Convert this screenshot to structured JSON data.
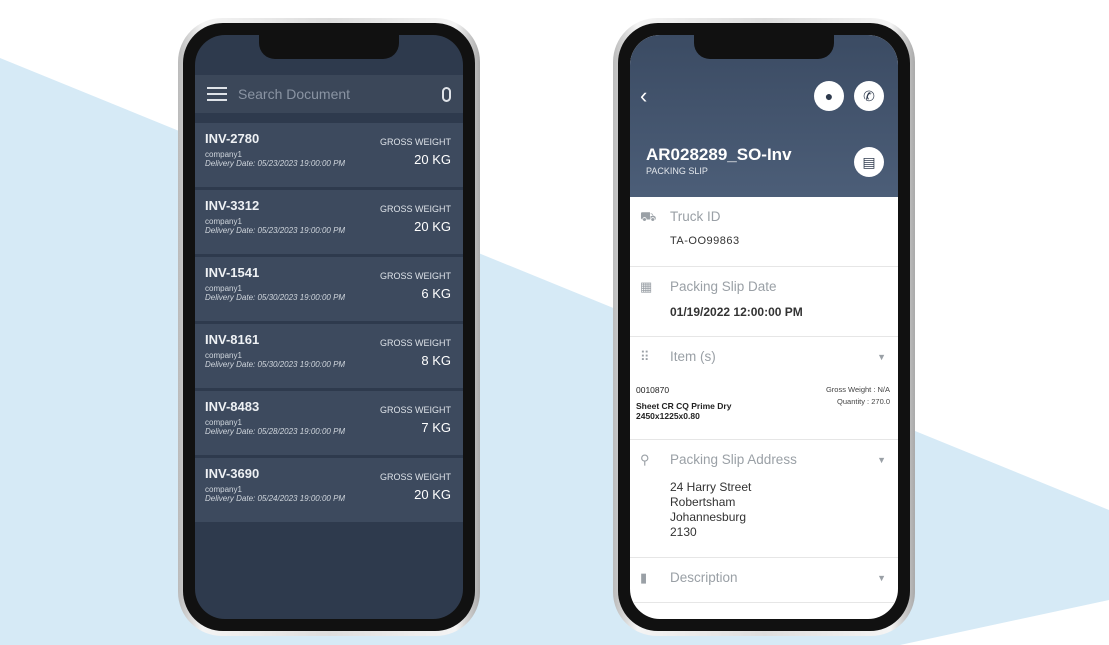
{
  "colors": {
    "background_band": "#d6eaf6",
    "list_bg": "#2e3a4d",
    "header_bg": "#3b4b63"
  },
  "list_screen": {
    "search": {
      "placeholder": "Search Document",
      "menu_icon": "hamburger-icon",
      "mic_icon": "microphone-icon"
    },
    "items": [
      {
        "id": "INV-2780",
        "company": "company1",
        "delivery": "Delivery Date:  05/23/2023 19:00:00 PM",
        "weight_label": "GROSS WEIGHT",
        "weight": "20 KG"
      },
      {
        "id": "INV-3312",
        "company": "company1",
        "delivery": "Delivery Date:  05/23/2023 19:00:00 PM",
        "weight_label": "GROSS WEIGHT",
        "weight": "20 KG"
      },
      {
        "id": "INV-1541",
        "company": "company1",
        "delivery": "Delivery Date:  05/30/2023 19:00:00 PM",
        "weight_label": "GROSS WEIGHT",
        "weight": "6 KG"
      },
      {
        "id": "INV-8161",
        "company": "company1",
        "delivery": "Delivery Date:  05/30/2023 19:00:00 PM",
        "weight_label": "GROSS WEIGHT",
        "weight": "8 KG"
      },
      {
        "id": "INV-8483",
        "company": "company1",
        "delivery": "Delivery Date:  05/28/2023 19:00:00 PM",
        "weight_label": "GROSS WEIGHT",
        "weight": "7 KG"
      },
      {
        "id": "INV-3690",
        "company": "company1",
        "delivery": "Delivery Date:  05/24/2023 19:00:00 PM",
        "weight_label": "GROSS WEIGHT",
        "weight": "20 KG"
      }
    ]
  },
  "detail_screen": {
    "title": "AR028289_SO-Inv",
    "subtitle": "PACKING SLIP",
    "truck": {
      "label": "Truck ID",
      "value": "TA-OO99863"
    },
    "date": {
      "label": "Packing Slip Date",
      "value": "01/19/2022 12:00:00 PM"
    },
    "items": {
      "label": "Item (s)",
      "code": "0010870",
      "name": "Sheet CR CQ Prime Dry",
      "size": "2450x1225x0.80",
      "gross": "Gross Weight : N/A",
      "qty": "Quantity : 270.0"
    },
    "address": {
      "label": "Packing Slip Address",
      "line1": "24 Harry Street",
      "line2": "Robertsham",
      "line3": "Johannesburg",
      "line4": "2130"
    },
    "description": {
      "label": "Description"
    }
  }
}
